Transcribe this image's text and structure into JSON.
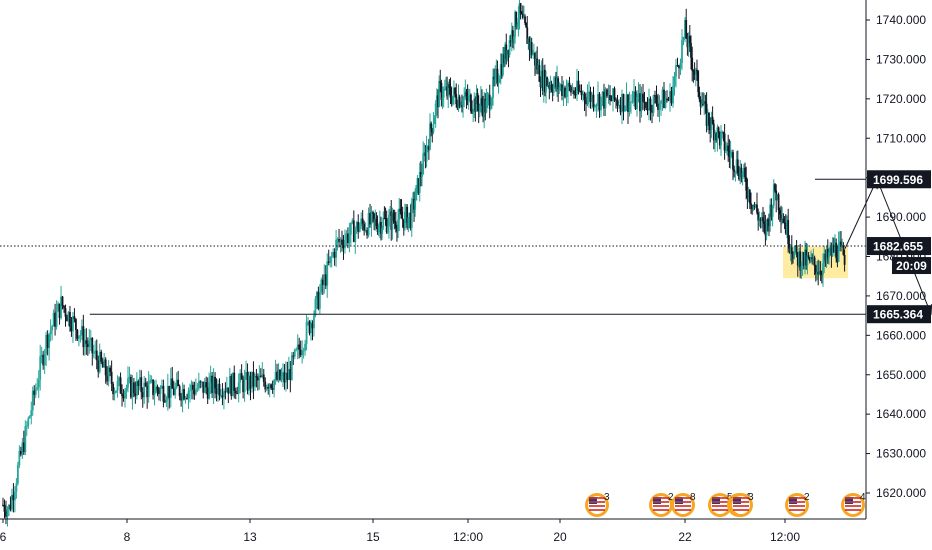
{
  "chart_data": {
    "type": "candlestick",
    "title": "",
    "xlabel": "",
    "ylabel": "",
    "ylim": [
      1613,
      1751
    ],
    "y_ticks": [
      "1620.000",
      "1630.000",
      "1640.000",
      "1650.000",
      "1660.000",
      "1670.000",
      "1680.000",
      "1690.000",
      "1700.000",
      "1710.000",
      "1720.000",
      "1730.000",
      "1740.000"
    ],
    "x_ticks": [
      "6",
      "8",
      "13",
      "15",
      "12:00",
      "20",
      "22",
      "12:00"
    ],
    "grid": false,
    "colors": {
      "up": "#26a69a",
      "down": "#131722",
      "background": "#ffffff",
      "axis": "#131722",
      "zone": "#ffe680"
    },
    "price_path": [
      [
        0,
        1617
      ],
      [
        0.05,
        1616
      ],
      [
        0.35,
        1659
      ],
      [
        0.47,
        1668
      ],
      [
        0.9,
        1647
      ],
      [
        1.4,
        1646
      ],
      [
        2.3,
        1649
      ],
      [
        2.5,
        1664
      ],
      [
        2.7,
        1683
      ],
      [
        2.9,
        1688
      ],
      [
        3.4,
        1690
      ],
      [
        3.7,
        1722
      ],
      [
        4.2,
        1718
      ],
      [
        4.4,
        1731
      ],
      [
        4.55,
        1742
      ],
      [
        4.8,
        1725
      ],
      [
        5.3,
        1720
      ],
      [
        5.7,
        1719
      ],
      [
        5.88,
        1720
      ],
      [
        6.0,
        1737
      ],
      [
        6.2,
        1716
      ],
      [
        6.55,
        1702
      ],
      [
        6.8,
        1686
      ],
      [
        6.9,
        1697
      ],
      [
        7.1,
        1680
      ],
      [
        7.35,
        1677
      ],
      [
        7.5,
        1682
      ],
      [
        7.6,
        1680
      ]
    ],
    "zone": {
      "x0": 6.98,
      "x1": 7.63,
      "y0": 1674.5,
      "y1": 1682.5
    },
    "projection": {
      "points": [
        [
          7.6,
          1682
        ],
        [
          7.92,
          1699.6
        ],
        [
          8.46,
          1665.4
        ]
      ]
    },
    "levels": [
      {
        "value": 1699.596,
        "label": "1699.596",
        "x_start": 7.3
      },
      {
        "value": 1665.364,
        "label": "1665.364",
        "x_start": 0.7
      }
    ],
    "current": {
      "value": 1682.655,
      "label": "1682.655",
      "countdown": "20:09"
    },
    "events": [
      "3",
      "2",
      "8",
      "5",
      "1",
      "3",
      "2",
      "4"
    ]
  }
}
